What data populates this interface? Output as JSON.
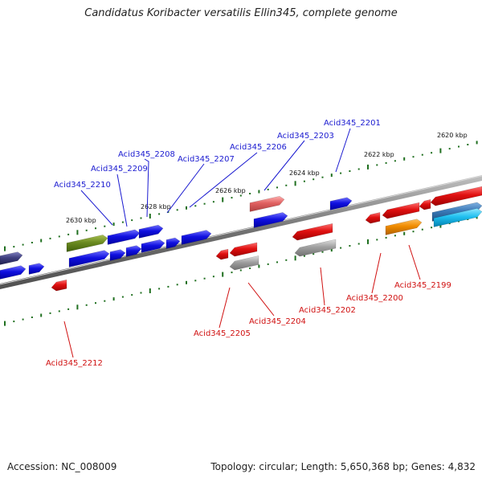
{
  "title": "Candidatus Koribacter versatilis Ellin345, complete genome",
  "footer": {
    "accession": "Accession: NC_008009",
    "summary": "Topology: circular; Length: 5,650,368 bp; Genes: 4,832"
  },
  "colors": {
    "blue": "#1010e0",
    "red": "#e01010",
    "gray": "#a0a0a0",
    "pink": "#e06060",
    "olive": "#6a8a20",
    "orange": "#f08c00",
    "navy": "#404080",
    "steel": "#3a7ab8",
    "cyan": "#20c0f0",
    "ticks": "#1f6f1f"
  },
  "scale_labels": [
    "2620 kbp",
    "2622 kbp",
    "2624 kbp",
    "2626 kbp",
    "2628 kbp",
    "2630 kbp"
  ],
  "gene_labels": {
    "forward": [
      "Acid345_2201",
      "Acid345_2203",
      "Acid345_2206",
      "Acid345_2207",
      "Acid345_2208",
      "Acid345_2209",
      "Acid345_2210"
    ],
    "reverse": [
      "Acid345_2199",
      "Acid345_2200",
      "Acid345_2202",
      "Acid345_2204",
      "Acid345_2205",
      "Acid345_2212"
    ]
  }
}
